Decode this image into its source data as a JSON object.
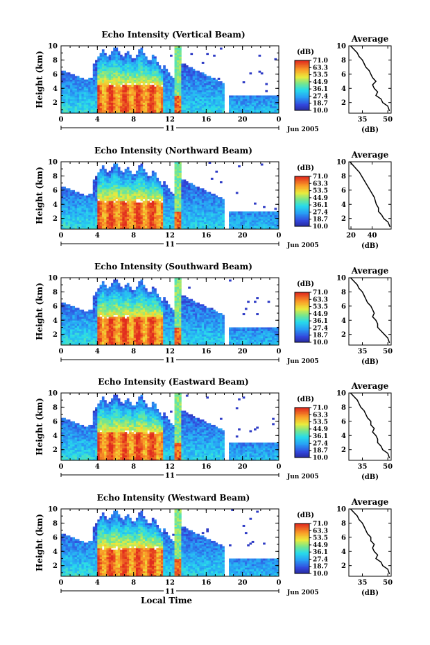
{
  "chart_data": [
    {
      "type": "heatmap",
      "title": "Echo Intensity (Vertical Beam)",
      "ylabel": "Height (km)",
      "xticks": [
        "0",
        "4",
        "8",
        "12",
        "16",
        "20",
        "0"
      ],
      "day_label": "11",
      "date_label": "Jun 2005",
      "xlim": [
        0,
        24
      ],
      "ylim": [
        0.5,
        10
      ],
      "yticks": [
        "2",
        "4",
        "6",
        "8",
        "10"
      ],
      "colorbar": {
        "unit": "(dB)",
        "ticks": [
          "71.0",
          "63.3",
          "53.5",
          "44.9",
          "36.1",
          "27.4",
          "18.7",
          "10.0"
        ]
      },
      "average_profile": {
        "title": "Average",
        "xlabel": "(dB)",
        "xticks": [
          "35",
          "50"
        ],
        "xlim": [
          27,
          52
        ],
        "height_km": [
          0.8,
          1.5,
          2.0,
          2.5,
          3.0,
          3.5,
          4.0,
          4.5,
          5.0,
          5.5,
          6.0,
          6.5,
          7.0,
          7.5,
          8.0,
          8.5,
          9.0,
          9.5,
          10.0
        ],
        "db": [
          51,
          50,
          47,
          46,
          43,
          44,
          42,
          41,
          43,
          41,
          40,
          39,
          37,
          36,
          35,
          33,
          32,
          30,
          28
        ]
      }
    },
    {
      "type": "heatmap",
      "title": "Echo Intensity (Northward Beam)",
      "ylabel": "Height (km)",
      "xticks": [
        "0",
        "4",
        "8",
        "12",
        "16",
        "20",
        "0"
      ],
      "day_label": "11",
      "date_label": "Jun 2005",
      "xlim": [
        0,
        24
      ],
      "ylim": [
        0.5,
        10
      ],
      "yticks": [
        "2",
        "4",
        "6",
        "8",
        "10"
      ],
      "colorbar": {
        "unit": "(dB)",
        "ticks": [
          "71.0",
          "63.3",
          "53.5",
          "44.9",
          "36.1",
          "27.4",
          "18.7",
          "10.0"
        ]
      },
      "average_profile": {
        "title": "Average",
        "xlabel": "(dB)",
        "xticks": [
          "20",
          "40"
        ],
        "xlim": [
          18,
          58
        ],
        "height_km": [
          0.8,
          1.5,
          2.0,
          2.5,
          3.0,
          3.5,
          4.0,
          4.5,
          5.0,
          5.5,
          6.0,
          6.5,
          7.0,
          7.5,
          8.0,
          8.5,
          9.0,
          9.5,
          10.0
        ],
        "db": [
          57,
          55,
          51,
          49,
          46,
          46,
          44,
          43,
          42,
          40,
          38,
          36,
          34,
          32,
          30,
          28,
          25,
          22,
          19
        ]
      }
    },
    {
      "type": "heatmap",
      "title": "Echo Intensity (Southward Beam)",
      "ylabel": "Height (km)",
      "xticks": [
        "0",
        "4",
        "8",
        "12",
        "16",
        "20",
        "0"
      ],
      "day_label": "11",
      "date_label": "Jun 2005",
      "xlim": [
        0,
        24
      ],
      "ylim": [
        0.5,
        10
      ],
      "yticks": [
        "2",
        "4",
        "6",
        "8",
        "10"
      ],
      "colorbar": {
        "unit": "(dB)",
        "ticks": [
          "71.0",
          "63.3",
          "53.5",
          "44.9",
          "36.1",
          "27.4",
          "18.7",
          "10.0"
        ]
      },
      "average_profile": {
        "title": "Average",
        "xlabel": "(dB)",
        "xticks": [
          "35",
          "50"
        ],
        "xlim": [
          27,
          52
        ],
        "height_km": [
          0.8,
          1.5,
          2.0,
          2.5,
          3.0,
          3.5,
          4.0,
          4.5,
          5.0,
          5.5,
          6.0,
          6.5,
          7.0,
          7.5,
          8.0,
          8.5,
          9.0,
          9.5,
          10.0
        ],
        "db": [
          51,
          50,
          48,
          46,
          44,
          44,
          43,
          41,
          42,
          41,
          40,
          38,
          37,
          36,
          35,
          33,
          32,
          30,
          28
        ]
      }
    },
    {
      "type": "heatmap",
      "title": "Echo Intensity (Eastward Beam)",
      "ylabel": "Height (km)",
      "xticks": [
        "0",
        "4",
        "8",
        "12",
        "16",
        "20",
        "0"
      ],
      "day_label": "11",
      "date_label": "Jun 2005",
      "xlim": [
        0,
        24
      ],
      "ylim": [
        0.5,
        10
      ],
      "yticks": [
        "2",
        "4",
        "6",
        "8",
        "10"
      ],
      "colorbar": {
        "unit": "(dB)",
        "ticks": [
          "71.0",
          "63.3",
          "53.5",
          "44.9",
          "36.1",
          "27.4",
          "18.7",
          "10.0"
        ]
      },
      "average_profile": {
        "title": "Average",
        "xlabel": "(dB)",
        "xticks": [
          "35",
          "50"
        ],
        "xlim": [
          27,
          52
        ],
        "height_km": [
          0.8,
          1.5,
          2.0,
          2.5,
          3.0,
          3.5,
          4.0,
          4.5,
          5.0,
          5.5,
          6.0,
          6.5,
          7.0,
          7.5,
          8.0,
          8.5,
          9.0,
          9.5,
          10.0
        ],
        "db": [
          51,
          50,
          47,
          46,
          44,
          44,
          43,
          41,
          42,
          40,
          40,
          38,
          37,
          36,
          34,
          33,
          32,
          30,
          28
        ]
      }
    },
    {
      "type": "heatmap",
      "title": "Echo Intensity (Westward Beam)",
      "ylabel": "Height (km)",
      "xticks": [
        "0",
        "4",
        "8",
        "12",
        "16",
        "20",
        "0"
      ],
      "day_label": "11",
      "date_label": "Jun 2005",
      "xlabel": "Local Time",
      "xlim": [
        0,
        24
      ],
      "ylim": [
        0.5,
        10
      ],
      "yticks": [
        "2",
        "4",
        "6",
        "8",
        "10"
      ],
      "colorbar": {
        "unit": "(dB)",
        "ticks": [
          "71.0",
          "63.3",
          "53.5",
          "44.9",
          "36.1",
          "27.4",
          "18.7",
          "10.0"
        ]
      },
      "average_profile": {
        "title": "Average",
        "xlabel": "(dB)",
        "xticks": [
          "35",
          "50"
        ],
        "xlim": [
          27,
          52
        ],
        "height_km": [
          0.8,
          1.5,
          2.0,
          2.5,
          3.0,
          3.5,
          4.0,
          4.5,
          5.0,
          5.5,
          6.0,
          6.5,
          7.0,
          7.5,
          8.0,
          8.5,
          9.0,
          9.5,
          10.0
        ],
        "db": [
          51,
          50,
          47,
          46,
          43,
          44,
          42,
          41,
          42,
          40,
          40,
          38,
          37,
          36,
          35,
          33,
          32,
          30,
          28
        ]
      }
    }
  ]
}
